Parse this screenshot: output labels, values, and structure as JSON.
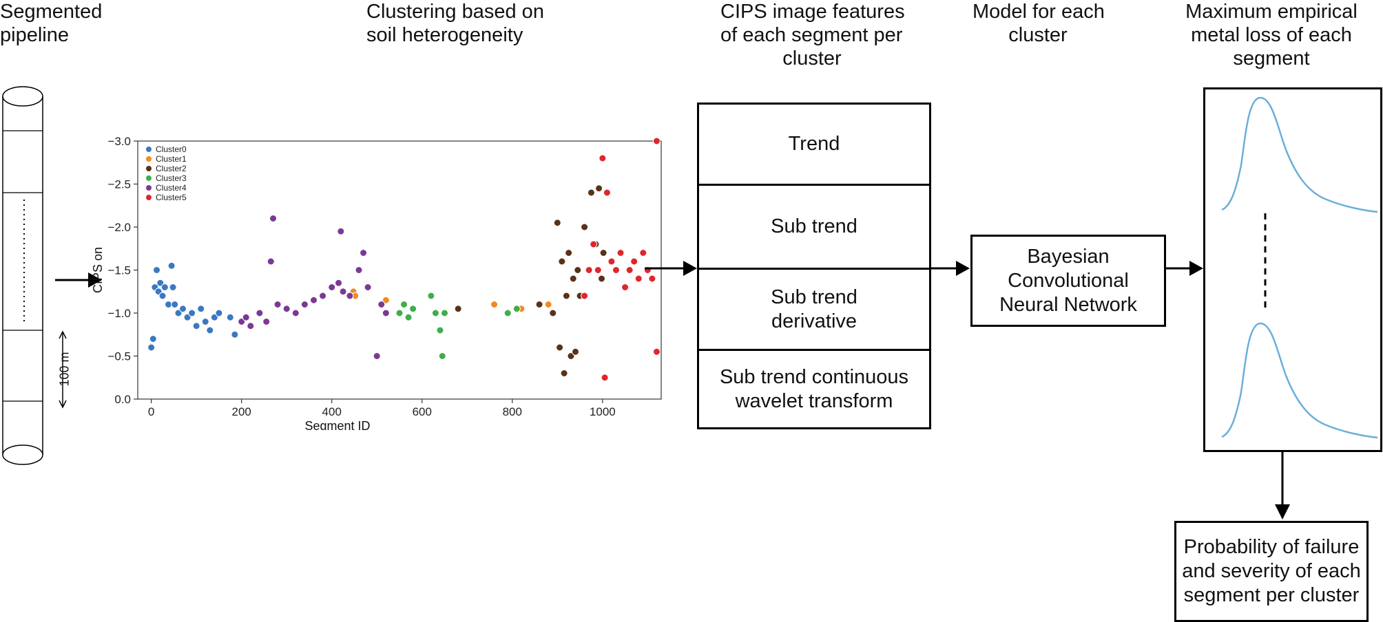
{
  "headings": {
    "pipeline": [
      "Segmented",
      "pipeline"
    ],
    "clustering": [
      "Clustering based on",
      "soil heterogeneity"
    ],
    "features": [
      "CIPS image features",
      "of each segment per",
      "cluster"
    ],
    "model": [
      "Model for each",
      "cluster"
    ],
    "metal_loss": [
      "Maximum empirical",
      "metal loss of each",
      "segment"
    ]
  },
  "pipeline": {
    "scale_label": "100 m"
  },
  "features_box": {
    "rows": [
      [
        "Trend"
      ],
      [
        "Sub trend"
      ],
      [
        "Sub trend",
        "derivative"
      ],
      [
        "Sub trend continuous",
        "wavelet transform"
      ]
    ]
  },
  "model_box": {
    "lines": [
      "Bayesian",
      "Convolutional",
      "Neural Network"
    ]
  },
  "output_box": {
    "lines": [
      "Probability of failure",
      "and severity of each",
      "segment per cluster"
    ]
  },
  "chart_data": {
    "type": "scatter",
    "title": "",
    "xlabel": "Segment ID",
    "ylabel": "CIPS on",
    "xlim": [
      -30,
      1130
    ],
    "ylim": [
      0.0,
      -3.0
    ],
    "y_inverted": true,
    "x_ticks": [
      0,
      200,
      400,
      600,
      800,
      1000
    ],
    "x_tick_labels": [
      "0",
      "200",
      "400",
      "600",
      "800",
      "1000"
    ],
    "y_ticks": [
      -3.0,
      -2.5,
      -2.0,
      -1.5,
      -1.0,
      -0.5,
      0.0
    ],
    "y_tick_labels": [
      "−3.0",
      "−2.5",
      "−2.0",
      "−1.5",
      "−1.0",
      "−0.5",
      "0.0"
    ],
    "grid": false,
    "legend_position": "top-left",
    "colors": {
      "Cluster0": "#3a78c2",
      "Cluster1": "#f08a24",
      "Cluster2": "#5a3217",
      "Cluster3": "#3fae49",
      "Cluster4": "#7b3894",
      "Cluster5": "#e0262b"
    },
    "series": [
      {
        "name": "Cluster0",
        "x": [
          0,
          4,
          8,
          12,
          16,
          20,
          25,
          30,
          38,
          45,
          48,
          52,
          60,
          70,
          80,
          90,
          100,
          110,
          120,
          130,
          140,
          150,
          175,
          185
        ],
        "y": [
          -0.6,
          -0.7,
          -1.3,
          -1.5,
          -1.25,
          -1.35,
          -1.2,
          -1.3,
          -1.1,
          -1.55,
          -1.3,
          -1.1,
          -1.0,
          -1.05,
          -0.95,
          -1.0,
          -0.85,
          -1.05,
          -0.9,
          -0.8,
          -0.95,
          -1.0,
          -0.95,
          -0.75
        ]
      },
      {
        "name": "Cluster1",
        "x": [
          448,
          452,
          520,
          760,
          820,
          880
        ],
        "y": [
          -1.25,
          -1.2,
          -1.15,
          -1.1,
          -1.05,
          -1.1
        ]
      },
      {
        "name": "Cluster2",
        "x": [
          680,
          860,
          890,
          900,
          905,
          910,
          915,
          920,
          925,
          930,
          935,
          940,
          945,
          950,
          960,
          975,
          985,
          992,
          998,
          1002
        ],
        "y": [
          -1.05,
          -1.1,
          -1.0,
          -2.05,
          -0.6,
          -1.6,
          -0.3,
          -1.2,
          -1.7,
          -0.5,
          -1.4,
          -0.55,
          -1.5,
          -1.2,
          -2.0,
          -2.4,
          -1.8,
          -2.45,
          -1.4,
          -1.7
        ]
      },
      {
        "name": "Cluster3",
        "x": [
          550,
          560,
          570,
          580,
          620,
          630,
          640,
          645,
          650,
          790,
          810
        ],
        "y": [
          -1.0,
          -1.1,
          -0.95,
          -1.05,
          -1.2,
          -1.0,
          -0.8,
          -0.5,
          -1.0,
          -1.0,
          -1.05
        ]
      },
      {
        "name": "Cluster4",
        "x": [
          200,
          210,
          220,
          240,
          255,
          265,
          270,
          280,
          300,
          320,
          340,
          360,
          380,
          400,
          415,
          420,
          425,
          440,
          460,
          470,
          480,
          500,
          510,
          520
        ],
        "y": [
          -0.9,
          -0.95,
          -0.85,
          -1.0,
          -0.9,
          -1.6,
          -2.1,
          -1.1,
          -1.05,
          -1.0,
          -1.1,
          -1.15,
          -1.2,
          -1.3,
          -1.35,
          -1.95,
          -1.25,
          -1.2,
          -1.5,
          -1.7,
          -1.3,
          -0.5,
          -1.1,
          -1.0
        ]
      },
      {
        "name": "Cluster5",
        "x": [
          960,
          970,
          980,
          990,
          1000,
          1005,
          1010,
          1020,
          1030,
          1040,
          1050,
          1060,
          1070,
          1080,
          1090,
          1100,
          1110,
          1120,
          1120
        ],
        "y": [
          -1.2,
          -1.5,
          -1.8,
          -1.5,
          -2.8,
          -0.25,
          -2.4,
          -1.6,
          -1.5,
          -1.7,
          -1.3,
          -1.5,
          -1.6,
          -1.4,
          -1.7,
          -1.5,
          -1.4,
          -3.0,
          -0.55
        ]
      }
    ]
  }
}
